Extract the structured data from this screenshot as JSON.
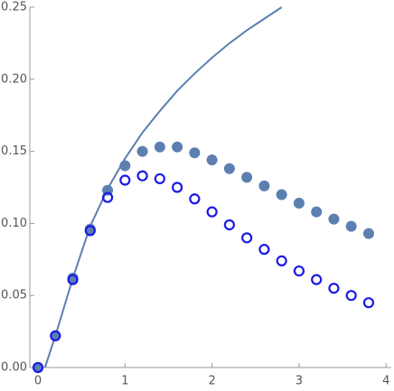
{
  "chart_data": {
    "type": "scatter",
    "xlim": [
      -0.094,
      4.06
    ],
    "ylim": [
      0,
      0.25
    ],
    "xticks": [
      0,
      1,
      2,
      3,
      4
    ],
    "yticks": [
      {
        "value": 0,
        "label": "0.00"
      },
      {
        "value": 0.05,
        "label": "0.05"
      },
      {
        "value": 0.1,
        "label": "0.10"
      },
      {
        "value": 0.15,
        "label": "0.15"
      },
      {
        "value": 0.2,
        "label": "0.20"
      },
      {
        "value": 0.25,
        "label": "0.25"
      }
    ],
    "series": [
      {
        "type": "line",
        "color": "#5b7fb0",
        "x": [
          0.08,
          0.2,
          0.4,
          0.6,
          0.8,
          1.0,
          1.2,
          1.4,
          1.6,
          1.8,
          2.0,
          2.2,
          2.4,
          2.6,
          2.8
        ],
        "values": [
          0,
          0.022,
          0.062,
          0.098,
          0.124,
          0.145,
          0.163,
          0.178,
          0.192,
          0.204,
          0.215,
          0.225,
          0.234,
          0.242,
          0.25
        ]
      },
      {
        "type": "scatter",
        "marker": "filled",
        "color": "#5b7fb0",
        "x": [
          0,
          0.2,
          0.4,
          0.6,
          0.8,
          1.0,
          1.2,
          1.4,
          1.6,
          1.8,
          2.0,
          2.2,
          2.4,
          2.6,
          2.8,
          3.0,
          3.2,
          3.4,
          3.6,
          3.8
        ],
        "values": [
          0,
          0.022,
          0.062,
          0.096,
          0.123,
          0.14,
          0.15,
          0.153,
          0.153,
          0.149,
          0.144,
          0.138,
          0.132,
          0.126,
          0.12,
          0.114,
          0.108,
          0.103,
          0.098,
          0.093
        ]
      },
      {
        "type": "scatter",
        "marker": "open",
        "color": "#1a1ae6",
        "x": [
          0,
          0.2,
          0.4,
          0.6,
          0.8,
          1.0,
          1.2,
          1.4,
          1.6,
          1.8,
          2.0,
          2.2,
          2.4,
          2.6,
          2.8,
          3.0,
          3.2,
          3.4,
          3.6,
          3.8
        ],
        "values": [
          0,
          0.022,
          0.061,
          0.095,
          0.118,
          0.13,
          0.133,
          0.131,
          0.125,
          0.117,
          0.108,
          0.099,
          0.09,
          0.082,
          0.074,
          0.067,
          0.061,
          0.055,
          0.05,
          0.045
        ]
      }
    ]
  }
}
